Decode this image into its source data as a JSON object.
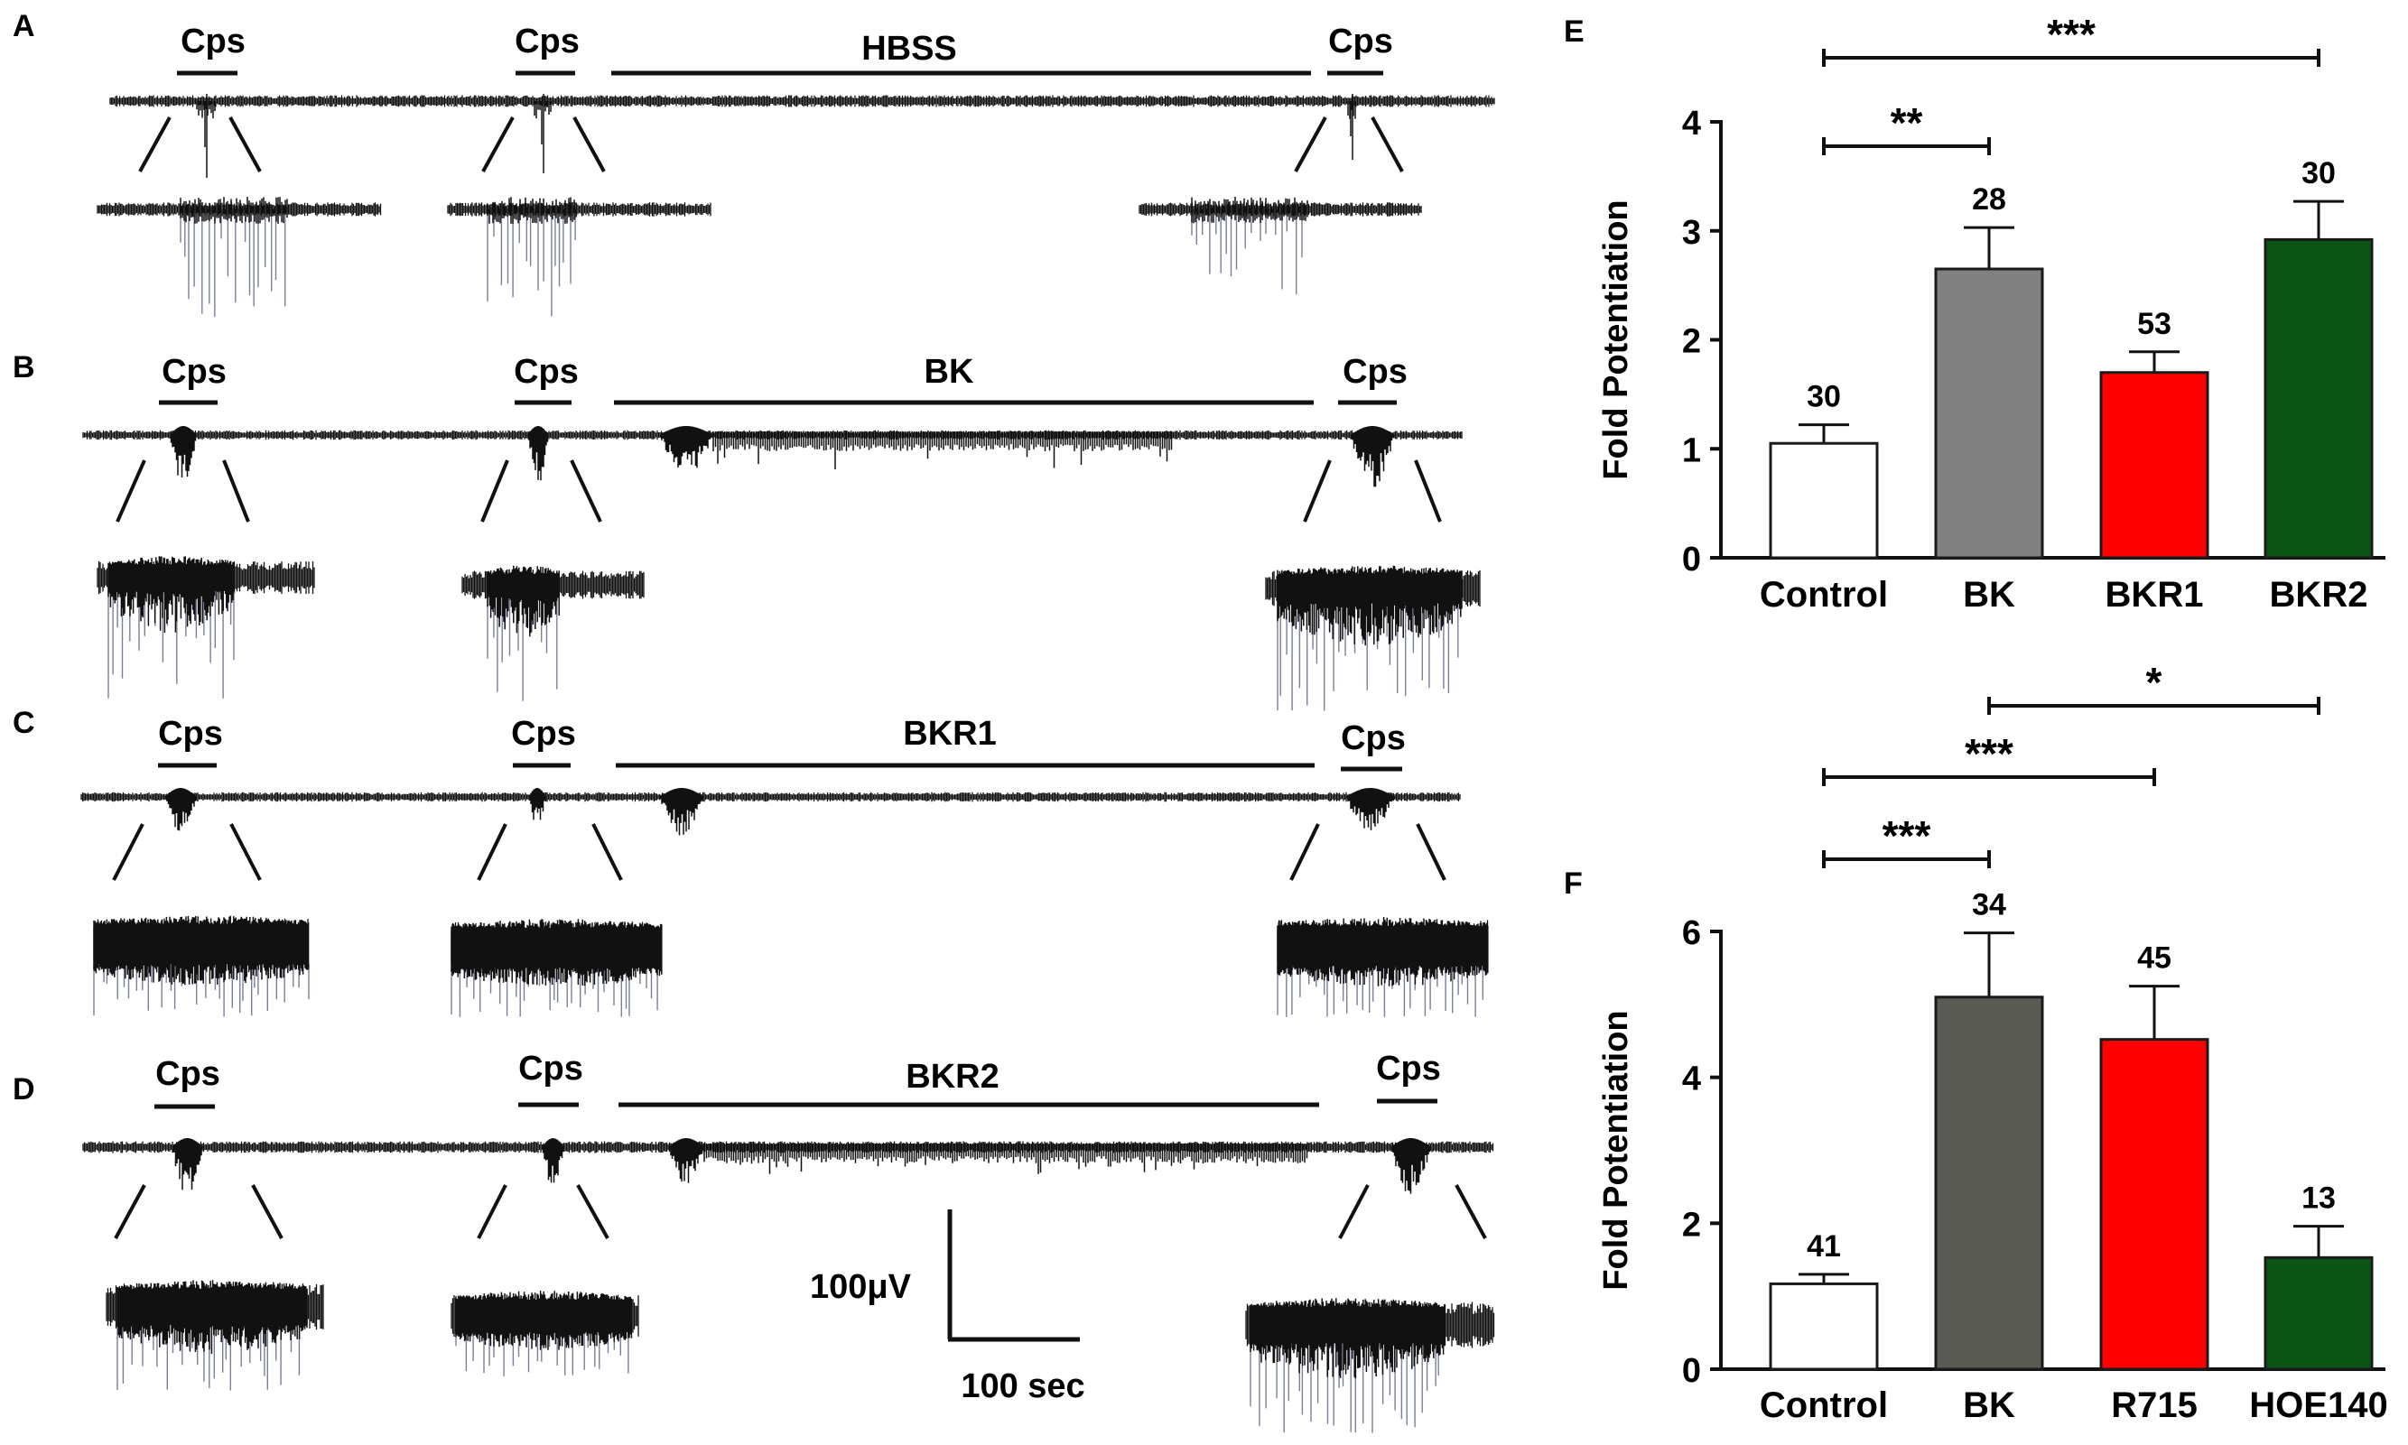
{
  "colors": {
    "trace": "#111111",
    "spike": "#7a7f9a",
    "bar_edge": "#1a1a1a",
    "control": "#ffffff",
    "bk_e": "#808080",
    "bk_f": "#5a5a55",
    "red": "#ff0000",
    "green": "#0b5416"
  },
  "traces": [
    {
      "panel": "A",
      "cps_label": "Cps",
      "drug_label": "HBSS"
    },
    {
      "panel": "B",
      "cps_label": "Cps",
      "drug_label": "BK"
    },
    {
      "panel": "C",
      "cps_label": "Cps",
      "drug_label": "BKR1"
    },
    {
      "panel": "D",
      "cps_label": "Cps",
      "drug_label": "BKR2"
    }
  ],
  "scale_bar": {
    "voltage": "100μV",
    "time": "100 sec"
  },
  "chart_data": [
    {
      "type": "bar",
      "panel": "E",
      "ylabel": "Fold Potentiation",
      "ylim": [
        0,
        4
      ],
      "yticks": [
        0,
        1,
        2,
        3,
        4
      ],
      "categories": [
        "Control",
        "BK",
        "BKR1",
        "BKR2"
      ],
      "values": [
        1.05,
        2.65,
        1.7,
        2.92
      ],
      "errors": [
        0.17,
        0.38,
        0.19,
        0.35
      ],
      "n_labels": [
        "30",
        "28",
        "53",
        "30"
      ],
      "fills": [
        "#ffffff",
        "#808080",
        "#ff0000",
        "#0b5416"
      ],
      "significance": [
        {
          "from": 0,
          "to": 1,
          "label": "**"
        },
        {
          "from": 0,
          "to": 3,
          "label": "***"
        }
      ]
    },
    {
      "type": "bar",
      "panel": "F",
      "ylabel": "Fold Potentiation",
      "ylim": [
        0,
        6
      ],
      "yticks": [
        0,
        2,
        4,
        6
      ],
      "categories": [
        "Control",
        "BK",
        "R715",
        "HOE140"
      ],
      "values": [
        1.17,
        5.1,
        4.52,
        1.53
      ],
      "errors": [
        0.13,
        0.88,
        0.73,
        0.43
      ],
      "n_labels": [
        "41",
        "34",
        "45",
        "13"
      ],
      "fills": [
        "#ffffff",
        "#5a5a55",
        "#ff0000",
        "#0b5416"
      ],
      "significance": [
        {
          "from": 0,
          "to": 1,
          "label": "***"
        },
        {
          "from": 0,
          "to": 2,
          "label": "***"
        },
        {
          "from": 1,
          "to": 3,
          "label": "*"
        }
      ]
    }
  ]
}
